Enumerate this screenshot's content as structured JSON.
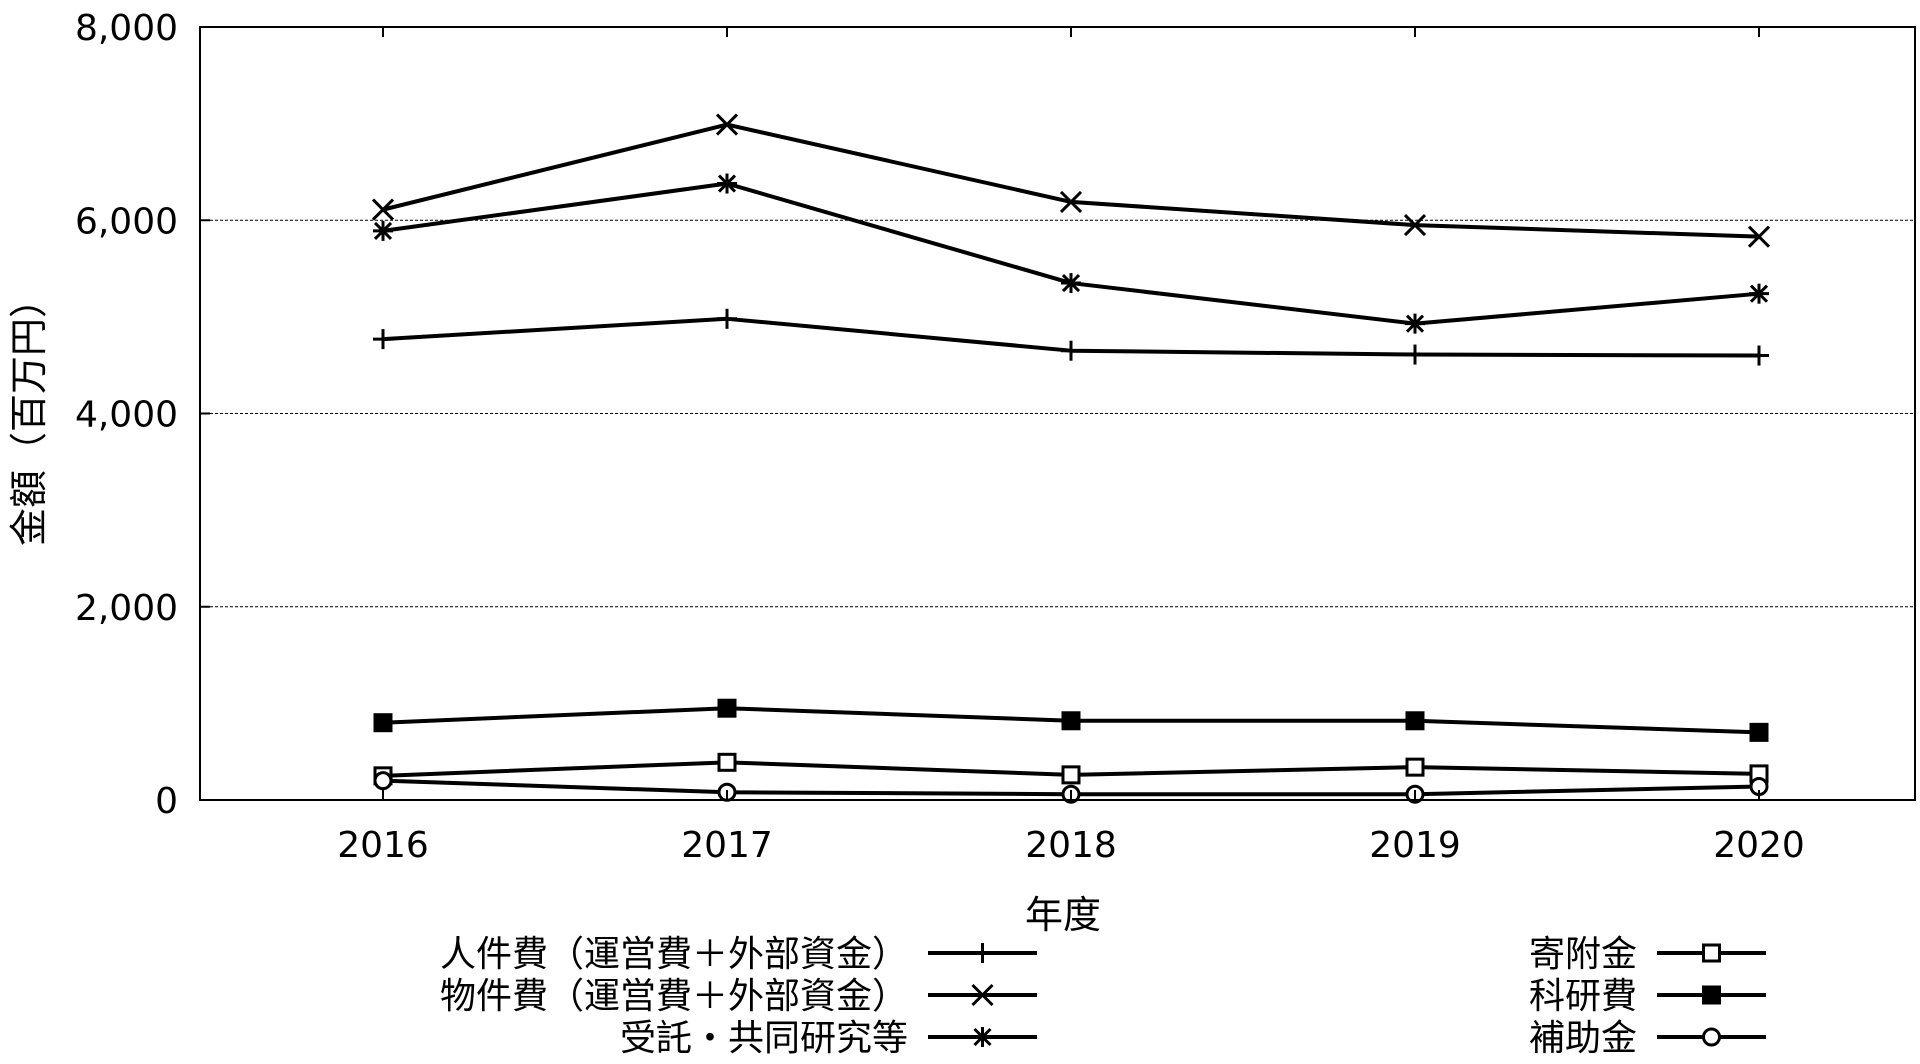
{
  "chart_data": {
    "type": "line",
    "title": "",
    "xlabel": "年度",
    "ylabel": "金額（百万円）",
    "categories": [
      "2016",
      "2017",
      "2018",
      "2019",
      "2020"
    ],
    "ylim": [
      0,
      8000
    ],
    "yticks": [
      "0",
      "2,000",
      "4,000",
      "6,000",
      "8,000"
    ],
    "grid": "horizontal dashed at 2,000 / 4,000 / 6,000",
    "legend_placement": "bottom, two columns",
    "line_color": "#000000",
    "series": [
      {
        "name": "人件費（運営費＋外部資金）",
        "marker": "plus",
        "values": [
          4770,
          4980,
          4650,
          4610,
          4600
        ]
      },
      {
        "name": "物件費（運営費＋外部資金）",
        "marker": "cross",
        "values": [
          6110,
          6990,
          6190,
          5950,
          5830
        ]
      },
      {
        "name": "受託・共同研究等",
        "marker": "star",
        "values": [
          5890,
          6380,
          5350,
          4930,
          5240
        ]
      },
      {
        "name": "寄附金",
        "marker": "open-square",
        "values": [
          250,
          390,
          260,
          340,
          270
        ]
      },
      {
        "name": "科研費",
        "marker": "filled-square",
        "values": [
          800,
          950,
          820,
          820,
          700
        ]
      },
      {
        "name": "補助金",
        "marker": "open-circle",
        "values": [
          200,
          80,
          60,
          60,
          140
        ]
      }
    ]
  }
}
